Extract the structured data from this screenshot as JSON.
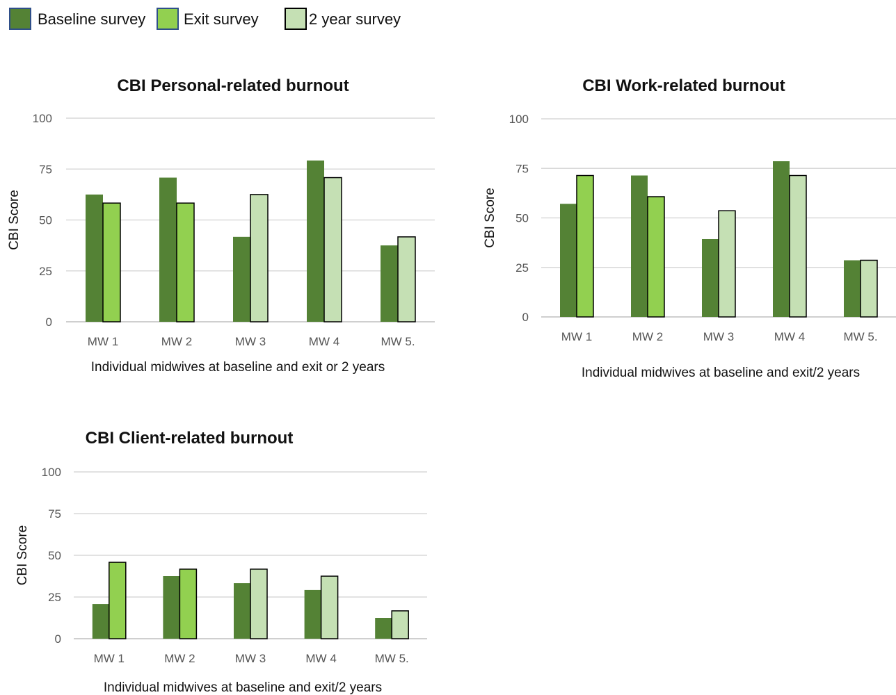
{
  "legend": [
    {
      "label": "Baseline survey",
      "color": "#548235",
      "stroke": "#2f4f8a"
    },
    {
      "label": "Exit survey",
      "color": "#92d050",
      "stroke": "#2f4f8a"
    },
    {
      "label": "2 year survey",
      "color": "#c5e0b4",
      "stroke": "#000000"
    }
  ],
  "chart_data": [
    {
      "id": "personal",
      "type": "bar",
      "title": "CBI Personal-related burnout",
      "xlabel": "Individual midwives at baseline and exit or 2 years",
      "ylabel": "CBI Score",
      "ylim": [
        0,
        100
      ],
      "yticks": [
        0,
        25,
        50,
        75,
        100
      ],
      "grid": true,
      "categories": [
        "MW 1",
        "MW 2",
        "MW 3",
        "MW 4",
        "MW 5."
      ],
      "series": [
        {
          "name": "Baseline survey",
          "values": [
            62.5,
            70.8,
            41.7,
            79.2,
            37.5
          ]
        },
        {
          "name": "Exit / 2 year survey",
          "values": [
            58.3,
            58.3,
            62.5,
            70.8,
            41.7
          ],
          "kinds": [
            "exit",
            "exit",
            "2year",
            "2year",
            "2year"
          ]
        }
      ]
    },
    {
      "id": "work",
      "type": "bar",
      "title": "CBI Work-related burnout",
      "xlabel": "Individual midwives at baseline and exit/2 years",
      "ylabel": "CBI Score",
      "ylim": [
        0,
        100
      ],
      "yticks": [
        0,
        25,
        50,
        75,
        100
      ],
      "grid": true,
      "categories": [
        "MW 1",
        "MW 2",
        "MW 3",
        "MW 4",
        "MW 5."
      ],
      "series": [
        {
          "name": "Baseline survey",
          "values": [
            57.1,
            71.4,
            39.3,
            78.6,
            28.6
          ]
        },
        {
          "name": "Exit / 2 year survey",
          "values": [
            71.4,
            60.7,
            53.6,
            71.4,
            28.6
          ],
          "kinds": [
            "exit",
            "exit",
            "2year",
            "2year",
            "2year"
          ]
        }
      ]
    },
    {
      "id": "client",
      "type": "bar",
      "title": "CBI Client-related burnout",
      "xlabel": "Individual midwives at baseline and exit/2 years",
      "ylabel": "CBI Score",
      "ylim": [
        0,
        100
      ],
      "yticks": [
        0,
        25,
        50,
        75,
        100
      ],
      "grid": true,
      "categories": [
        "MW 1",
        "MW 2",
        "MW 3",
        "MW 4",
        "MW 5."
      ],
      "series": [
        {
          "name": "Baseline survey",
          "values": [
            20.8,
            37.5,
            33.3,
            29.2,
            12.5
          ]
        },
        {
          "name": "Exit / 2 year survey",
          "values": [
            45.8,
            41.7,
            41.7,
            37.5,
            16.7
          ],
          "kinds": [
            "exit",
            "exit",
            "2year",
            "2year",
            "2year"
          ]
        }
      ]
    }
  ]
}
